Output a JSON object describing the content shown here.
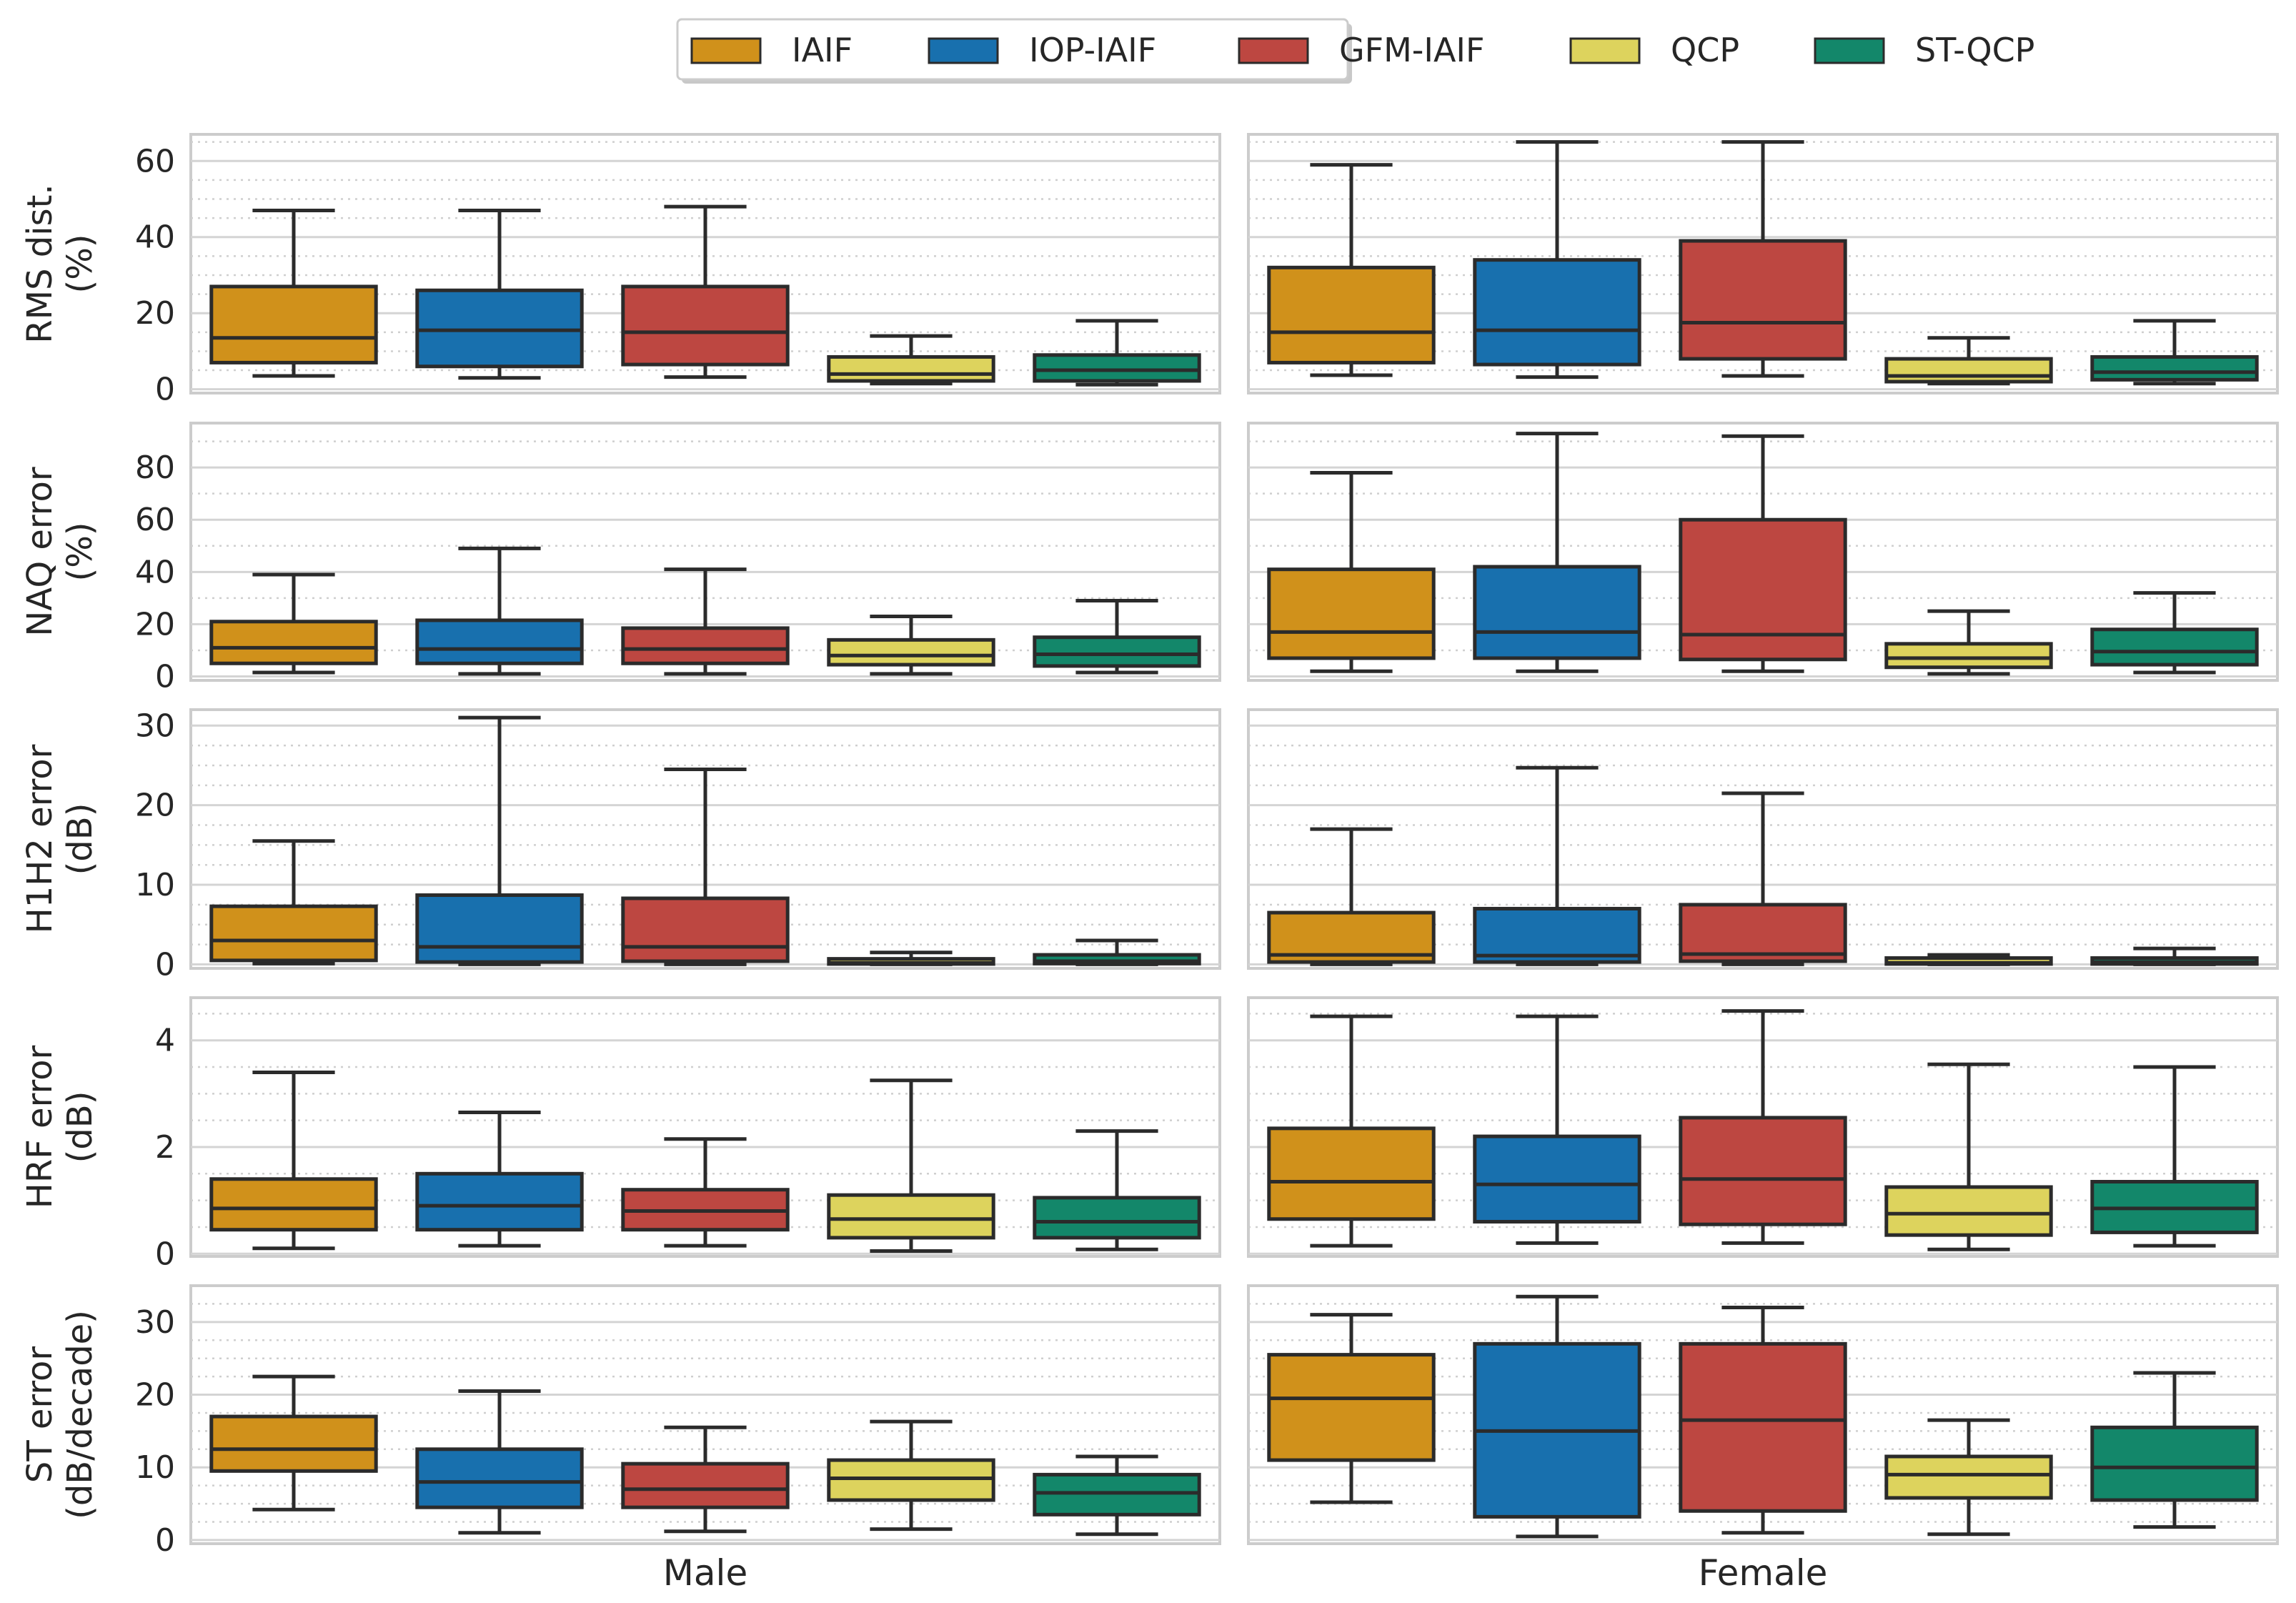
{
  "chart_data": {
    "type": "box",
    "legend": {
      "placement": "top-center",
      "entries": [
        "IAIF",
        "IOP-IAIF",
        "GFM-IAIF",
        "QCP",
        "ST-QCP"
      ]
    },
    "colors": {
      "IAIF": "#D0911B",
      "IOP-IAIF": "#1870AE",
      "GFM-IAIF": "#BD4741",
      "QCP": "#DDD35D",
      "ST-QCP": "#13876A"
    },
    "columns": [
      "Male",
      "Female"
    ],
    "grid": true,
    "rows": [
      {
        "ylabel": [
          "RMS dist.",
          "(%)"
        ],
        "ylim": [
          -1,
          67
        ],
        "yticks": [
          0,
          20,
          40,
          60
        ],
        "yticks_minor": [
          5,
          10,
          15,
          25,
          30,
          35,
          45,
          50,
          55,
          65
        ],
        "boxes": {
          "Male": [
            {
              "series": "IAIF",
              "whislo": 3.5,
              "q1": 7,
              "median": 13.5,
              "q3": 27,
              "whishi": 47
            },
            {
              "series": "IOP-IAIF",
              "whislo": 3,
              "q1": 6,
              "median": 15.5,
              "q3": 26,
              "whishi": 47
            },
            {
              "series": "GFM-IAIF",
              "whislo": 3.2,
              "q1": 6.5,
              "median": 15,
              "q3": 27,
              "whishi": 48
            },
            {
              "series": "QCP",
              "whislo": 1.5,
              "q1": 2.2,
              "median": 4,
              "q3": 8.5,
              "whishi": 14
            },
            {
              "series": "ST-QCP",
              "whislo": 1.2,
              "q1": 2.2,
              "median": 5,
              "q3": 9,
              "whishi": 18
            }
          ],
          "Female": [
            {
              "series": "IAIF",
              "whislo": 3.7,
              "q1": 7,
              "median": 15,
              "q3": 32,
              "whishi": 59
            },
            {
              "series": "IOP-IAIF",
              "whislo": 3.2,
              "q1": 6.5,
              "median": 15.5,
              "q3": 34,
              "whishi": 65
            },
            {
              "series": "GFM-IAIF",
              "whislo": 3.5,
              "q1": 8,
              "median": 17.5,
              "q3": 39,
              "whishi": 65
            },
            {
              "series": "QCP",
              "whislo": 1.5,
              "q1": 2,
              "median": 3.5,
              "q3": 8,
              "whishi": 13.5
            },
            {
              "series": "ST-QCP",
              "whislo": 1.5,
              "q1": 2.5,
              "median": 4.5,
              "q3": 8.5,
              "whishi": 18
            }
          ]
        }
      },
      {
        "ylabel": [
          "NAQ error",
          "(%)"
        ],
        "ylim": [
          -1.5,
          97
        ],
        "yticks": [
          0,
          20,
          40,
          60,
          80
        ],
        "yticks_minor": [
          10,
          30,
          50,
          70,
          90
        ],
        "boxes": {
          "Male": [
            {
              "series": "IAIF",
              "whislo": 1.5,
              "q1": 5,
              "median": 11,
              "q3": 21,
              "whishi": 39
            },
            {
              "series": "IOP-IAIF",
              "whislo": 1,
              "q1": 5,
              "median": 10.5,
              "q3": 21.5,
              "whishi": 49
            },
            {
              "series": "GFM-IAIF",
              "whislo": 1,
              "q1": 5,
              "median": 10.5,
              "q3": 18.5,
              "whishi": 41
            },
            {
              "series": "QCP",
              "whislo": 1,
              "q1": 4.5,
              "median": 8,
              "q3": 14,
              "whishi": 23
            },
            {
              "series": "ST-QCP",
              "whislo": 1.5,
              "q1": 4,
              "median": 8.5,
              "q3": 15,
              "whishi": 29
            }
          ],
          "Female": [
            {
              "series": "IAIF",
              "whislo": 2,
              "q1": 7,
              "median": 17,
              "q3": 41,
              "whishi": 78
            },
            {
              "series": "IOP-IAIF",
              "whislo": 2,
              "q1": 7,
              "median": 17,
              "q3": 42,
              "whishi": 93
            },
            {
              "series": "GFM-IAIF",
              "whislo": 2,
              "q1": 6.5,
              "median": 16,
              "q3": 60,
              "whishi": 92
            },
            {
              "series": "QCP",
              "whislo": 1,
              "q1": 3.5,
              "median": 7,
              "q3": 12.5,
              "whishi": 25
            },
            {
              "series": "ST-QCP",
              "whislo": 1.5,
              "q1": 4.5,
              "median": 9.5,
              "q3": 18,
              "whishi": 32
            }
          ]
        }
      },
      {
        "ylabel": [
          "H1H2 error",
          "(dB)"
        ],
        "ylim": [
          -0.5,
          32
        ],
        "yticks": [
          0,
          10,
          20,
          30
        ],
        "yticks_minor": [
          2.5,
          5,
          7.5,
          12.5,
          15,
          17.5,
          22.5,
          25,
          27.5
        ],
        "boxes": {
          "Male": [
            {
              "series": "IAIF",
              "whislo": 0.1,
              "q1": 0.5,
              "median": 3,
              "q3": 7.3,
              "whishi": 15.5
            },
            {
              "series": "IOP-IAIF",
              "whislo": 0,
              "q1": 0.3,
              "median": 2.2,
              "q3": 8.7,
              "whishi": 31
            },
            {
              "series": "GFM-IAIF",
              "whislo": 0,
              "q1": 0.4,
              "median": 2.2,
              "q3": 8.3,
              "whishi": 24.5
            },
            {
              "series": "QCP",
              "whislo": 0,
              "q1": 0.05,
              "median": 0.2,
              "q3": 0.7,
              "whishi": 1.5
            },
            {
              "series": "ST-QCP",
              "whislo": 0,
              "q1": 0.1,
              "median": 0.4,
              "q3": 1.2,
              "whishi": 3
            }
          ],
          "Female": [
            {
              "series": "IAIF",
              "whislo": 0,
              "q1": 0.3,
              "median": 1.2,
              "q3": 6.5,
              "whishi": 17
            },
            {
              "series": "IOP-IAIF",
              "whislo": 0,
              "q1": 0.3,
              "median": 1.1,
              "q3": 7,
              "whishi": 24.7
            },
            {
              "series": "GFM-IAIF",
              "whislo": 0,
              "q1": 0.4,
              "median": 1.3,
              "q3": 7.5,
              "whishi": 21.5
            },
            {
              "series": "QCP",
              "whislo": 0,
              "q1": 0.05,
              "median": 0.2,
              "q3": 0.8,
              "whishi": 1.2
            },
            {
              "series": "ST-QCP",
              "whislo": 0,
              "q1": 0.05,
              "median": 0.3,
              "q3": 0.8,
              "whishi": 2
            }
          ]
        }
      },
      {
        "ylabel": [
          "HRF error",
          "(dB)"
        ],
        "ylim": [
          -0.05,
          4.8
        ],
        "yticks": [
          0,
          2,
          4
        ],
        "yticks_minor": [
          0.5,
          1,
          1.5,
          2.5,
          3,
          3.5,
          4.5
        ],
        "boxes": {
          "Male": [
            {
              "series": "IAIF",
              "whislo": 0.1,
              "q1": 0.45,
              "median": 0.85,
              "q3": 1.4,
              "whishi": 3.4
            },
            {
              "series": "IOP-IAIF",
              "whislo": 0.15,
              "q1": 0.45,
              "median": 0.9,
              "q3": 1.5,
              "whishi": 2.65
            },
            {
              "series": "GFM-IAIF",
              "whislo": 0.15,
              "q1": 0.45,
              "median": 0.8,
              "q3": 1.2,
              "whishi": 2.15
            },
            {
              "series": "QCP",
              "whislo": 0.05,
              "q1": 0.3,
              "median": 0.65,
              "q3": 1.1,
              "whishi": 3.25
            },
            {
              "series": "ST-QCP",
              "whislo": 0.08,
              "q1": 0.3,
              "median": 0.6,
              "q3": 1.05,
              "whishi": 2.3
            }
          ],
          "Female": [
            {
              "series": "IAIF",
              "whislo": 0.15,
              "q1": 0.65,
              "median": 1.35,
              "q3": 2.35,
              "whishi": 4.45
            },
            {
              "series": "IOP-IAIF",
              "whislo": 0.2,
              "q1": 0.6,
              "median": 1.3,
              "q3": 2.2,
              "whishi": 4.45
            },
            {
              "series": "GFM-IAIF",
              "whislo": 0.2,
              "q1": 0.55,
              "median": 1.4,
              "q3": 2.55,
              "whishi": 4.55
            },
            {
              "series": "QCP",
              "whislo": 0.08,
              "q1": 0.35,
              "median": 0.75,
              "q3": 1.25,
              "whishi": 3.55
            },
            {
              "series": "ST-QCP",
              "whislo": 0.15,
              "q1": 0.4,
              "median": 0.85,
              "q3": 1.35,
              "whishi": 3.5
            }
          ]
        }
      },
      {
        "ylabel": [
          "ST error",
          "(dB/decade)"
        ],
        "ylim": [
          -0.5,
          35
        ],
        "yticks": [
          0,
          10,
          20,
          30
        ],
        "yticks_minor": [
          2.5,
          5,
          7.5,
          12.5,
          15,
          17.5,
          22.5,
          25,
          27.5,
          32.5
        ],
        "boxes": {
          "Male": [
            {
              "series": "IAIF",
              "whislo": 4.2,
              "q1": 9.5,
              "median": 12.5,
              "q3": 17,
              "whishi": 22.5
            },
            {
              "series": "IOP-IAIF",
              "whislo": 1,
              "q1": 4.5,
              "median": 8,
              "q3": 12.5,
              "whishi": 20.5
            },
            {
              "series": "GFM-IAIF",
              "whislo": 1.2,
              "q1": 4.5,
              "median": 7,
              "q3": 10.5,
              "whishi": 15.5
            },
            {
              "series": "QCP",
              "whislo": 1.5,
              "q1": 5.5,
              "median": 8.5,
              "q3": 11,
              "whishi": 16.3
            },
            {
              "series": "ST-QCP",
              "whislo": 0.8,
              "q1": 3.5,
              "median": 6.5,
              "q3": 9,
              "whishi": 11.5
            }
          ],
          "Female": [
            {
              "series": "IAIF",
              "whislo": 5.2,
              "q1": 11,
              "median": 19.5,
              "q3": 25.5,
              "whishi": 31
            },
            {
              "series": "IOP-IAIF",
              "whislo": 0.5,
              "q1": 3.2,
              "median": 15,
              "q3": 27,
              "whishi": 33.5
            },
            {
              "series": "GFM-IAIF",
              "whislo": 1,
              "q1": 4,
              "median": 16.5,
              "q3": 27,
              "whishi": 32
            },
            {
              "series": "QCP",
              "whislo": 0.8,
              "q1": 5.8,
              "median": 9,
              "q3": 11.5,
              "whishi": 16.5
            },
            {
              "series": "ST-QCP",
              "whislo": 1.8,
              "q1": 5.5,
              "median": 10,
              "q3": 15.5,
              "whishi": 23
            }
          ]
        }
      }
    ]
  }
}
